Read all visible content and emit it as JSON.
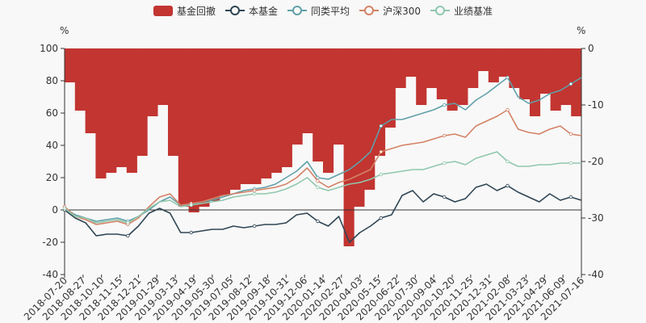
{
  "legend": [
    {
      "name": "基金回撤",
      "color": "#c23531",
      "kind": "bar"
    },
    {
      "name": "本基金",
      "color": "#2f4554",
      "kind": "line"
    },
    {
      "name": "同类平均",
      "color": "#61a0a8",
      "kind": "line"
    },
    {
      "name": "沪深300",
      "color": "#d48265",
      "kind": "line"
    },
    {
      "name": "业绩基准",
      "color": "#91c7ae",
      "kind": "line"
    }
  ],
  "left_unit": "%",
  "right_unit": "%",
  "chart_data": {
    "type": "line",
    "x_ticks": [
      "2018-07-20",
      "2018-08-27",
      "2018-10-10",
      "2018-11-15",
      "2018-12-21",
      "2019-01-29",
      "2019-03-13",
      "2019-04-19",
      "2019-05-30",
      "2019-07-05",
      "2019-08-12",
      "2019-09-18",
      "2019-10-31",
      "2019-12-06",
      "2020-01-14",
      "2020-02-27",
      "2020-04-03",
      "2020-05-15",
      "2020-06-22",
      "2020-07-30",
      "2020-09-04",
      "2020-10-20",
      "2020-11-25",
      "2020-12-31",
      "2021-02-08",
      "2021-03-23",
      "2021-04-29",
      "2021-06-09",
      "2021-07-16"
    ],
    "y_left": {
      "min": -40,
      "max": 100,
      "ticks": [
        -40,
        -20,
        0,
        20,
        40,
        60,
        80,
        100
      ]
    },
    "y_right": {
      "min": -40,
      "max": 0,
      "ticks": [
        -40,
        -30,
        -20,
        -10,
        0
      ]
    },
    "grid": false,
    "legend_position": "top-center",
    "series": [
      {
        "name": "本基金",
        "axis": "left",
        "color": "#2f4554",
        "values": [
          0,
          -5,
          -8,
          -16,
          -15,
          -15,
          -16,
          -10,
          -2,
          1,
          -2,
          -14,
          -14,
          -13,
          -12,
          -12,
          -10,
          -11,
          -10,
          -9,
          -9,
          -8,
          -3,
          -2,
          -7,
          -10,
          -4,
          -20,
          -14,
          -10,
          -5,
          -3,
          9,
          12,
          5,
          10,
          8,
          5,
          7,
          14,
          16,
          12,
          15,
          11,
          8,
          5,
          10,
          6,
          8,
          6
        ]
      },
      {
        "name": "同类平均",
        "axis": "left",
        "color": "#61a0a8",
        "values": [
          1,
          -3,
          -5,
          -7,
          -6,
          -5,
          -7,
          -4,
          0,
          5,
          8,
          3,
          3,
          5,
          6,
          8,
          10,
          12,
          13,
          14,
          16,
          20,
          24,
          30,
          20,
          19,
          22,
          25,
          30,
          36,
          52,
          56,
          56,
          58,
          60,
          62,
          65,
          66,
          62,
          68,
          72,
          77,
          82,
          70,
          66,
          68,
          72,
          74,
          78,
          82
        ]
      },
      {
        "name": "沪深300",
        "axis": "left",
        "color": "#d48265",
        "values": [
          2,
          -4,
          -6,
          -9,
          -8,
          -7,
          -9,
          -5,
          2,
          8,
          10,
          3,
          4,
          5,
          7,
          9,
          10,
          11,
          12,
          13,
          14,
          16,
          20,
          26,
          18,
          14,
          17,
          19,
          22,
          25,
          36,
          38,
          40,
          41,
          42,
          44,
          46,
          47,
          45,
          52,
          55,
          58,
          62,
          50,
          48,
          47,
          50,
          52,
          47,
          46
        ]
      },
      {
        "name": "业绩基准",
        "axis": "left",
        "color": "#91c7ae",
        "values": [
          1,
          -4,
          -5,
          -8,
          -7,
          -6,
          -8,
          -4,
          1,
          5,
          6,
          2,
          3,
          4,
          5,
          6,
          8,
          9,
          10,
          10,
          11,
          13,
          16,
          20,
          14,
          12,
          14,
          16,
          17,
          19,
          22,
          23,
          24,
          25,
          25,
          27,
          29,
          30,
          28,
          32,
          34,
          36,
          30,
          27,
          27,
          28,
          28,
          29,
          29,
          29
        ]
      },
      {
        "name": "基金回撤",
        "axis": "right",
        "type": "bar",
        "color": "#c23531",
        "values": [
          -6,
          -11,
          -15,
          -23,
          -22,
          -21,
          -22,
          -19,
          -12,
          -10,
          -19,
          -28,
          -29,
          -28,
          -27,
          -26,
          -25,
          -24,
          -24,
          -23,
          -22,
          -21,
          -17,
          -15,
          -20,
          -22,
          -17,
          -35,
          -28,
          -25,
          -19,
          -14,
          -7,
          -5,
          -10,
          -7,
          -9,
          -11,
          -10,
          -7,
          -4,
          -6,
          -5,
          -7,
          -9,
          -12,
          -8,
          -11,
          -10,
          -12
        ]
      }
    ]
  }
}
